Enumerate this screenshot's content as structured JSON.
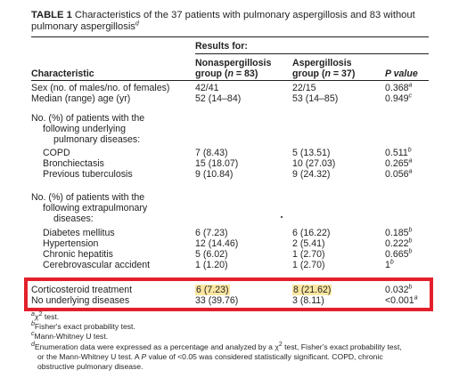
{
  "caption": {
    "label": "TABLE 1",
    "text_line1": " Characteristics of the 37 patients with pulmonary aspergillosis and 83 without",
    "text_line2": "pulmonary aspergillosis",
    "text_sup": "d"
  },
  "header": {
    "results_for": "Results for:",
    "characteristic": "Characteristic",
    "col1_line1": "Nonaspergillosis",
    "col1_line2": "group (",
    "col1_n": "n",
    "col1_tail": " = 83)",
    "col2_line1": "Aspergillosis",
    "col2_line2": "group (",
    "col2_n": "n",
    "col2_tail": " = 37)",
    "pvalue": "P value"
  },
  "rows": {
    "sex": {
      "label": "Sex (no. of males/no. of females)",
      "c1": "42/41",
      "c2": "22/15",
      "p": "0.368",
      "sup": "a"
    },
    "age": {
      "label": "Median (range) age (yr)",
      "c1": "52 (14–84)",
      "c2": "53 (14–85)",
      "p": "0.949",
      "sup": "c"
    },
    "pulm_head_1": "No. (%) of patients with the",
    "pulm_head_2": "following underlying",
    "pulm_head_3": "pulmonary diseases:",
    "copd": {
      "label": "COPD",
      "c1": "7 (8.43)",
      "c2": "5 (13.51)",
      "p": "0.511",
      "sup": "b"
    },
    "bronch": {
      "label": "Bronchiectasis",
      "c1": "15 (18.07)",
      "c2": "10 (27.03)",
      "p": "0.265",
      "sup": "a"
    },
    "tb": {
      "label": "Previous tuberculosis",
      "c1": "9 (10.84)",
      "c2": "9 (24.32)",
      "p": "0.056",
      "sup": "a"
    },
    "extra_head_1": "No. (%) of patients with the",
    "extra_head_2": "following extrapulmonary",
    "extra_head_3": "diseases:",
    "dm": {
      "label": "Diabetes mellitus",
      "c1": "6 (7.23)",
      "c2": "6 (16.22)",
      "p": "0.185",
      "sup": "b"
    },
    "htn": {
      "label": "Hypertension",
      "c1": "12 (14.46)",
      "c2": "2 (5.41)",
      "p": "0.222",
      "sup": "b"
    },
    "hep": {
      "label": "Chronic hepatitis",
      "c1": "5 (6.02)",
      "c2": "1 (2.70)",
      "p": "0.665",
      "sup": "b"
    },
    "cva": {
      "label": "Cerebrovascular accident",
      "c1": "1 (1.20)",
      "c2": "1 (2.70)",
      "p": "1",
      "sup": "b"
    },
    "cort": {
      "label": "Corticosteroid treatment",
      "c1": "6 (7.23)",
      "c2": "8 (21.62)",
      "p": "0.032",
      "sup": "b"
    },
    "none": {
      "label": "No underlying diseases",
      "c1": "33 (39.76)",
      "c2": "3 (8.11)",
      "p": "<0.001",
      "sup": "a"
    }
  },
  "footnotes": {
    "a_mark": "a",
    "a_sym": "χ",
    "a_exp": "2",
    "a_text": " test.",
    "b_mark": "b",
    "b_text": "Fisher's exact probability test.",
    "c_mark": "c",
    "c_text": "Mann-Whitney U test.",
    "d_mark": "d",
    "d_text1": "Enumeration data were expressed as a percentage and analyzed by a χ",
    "d_exp": "2",
    "d_text1b": " test, Fisher's exact probability test,",
    "d_text2a": "or the Mann-Whitney U test. A ",
    "d_text2p": "P",
    "d_text2b": " value of <0.05 was considered statistically significant. COPD, chronic",
    "d_text3": "obstructive pulmonary disease."
  },
  "highlight_colors": {
    "box": "#e3202a",
    "marker": "#fbe7a1"
  }
}
